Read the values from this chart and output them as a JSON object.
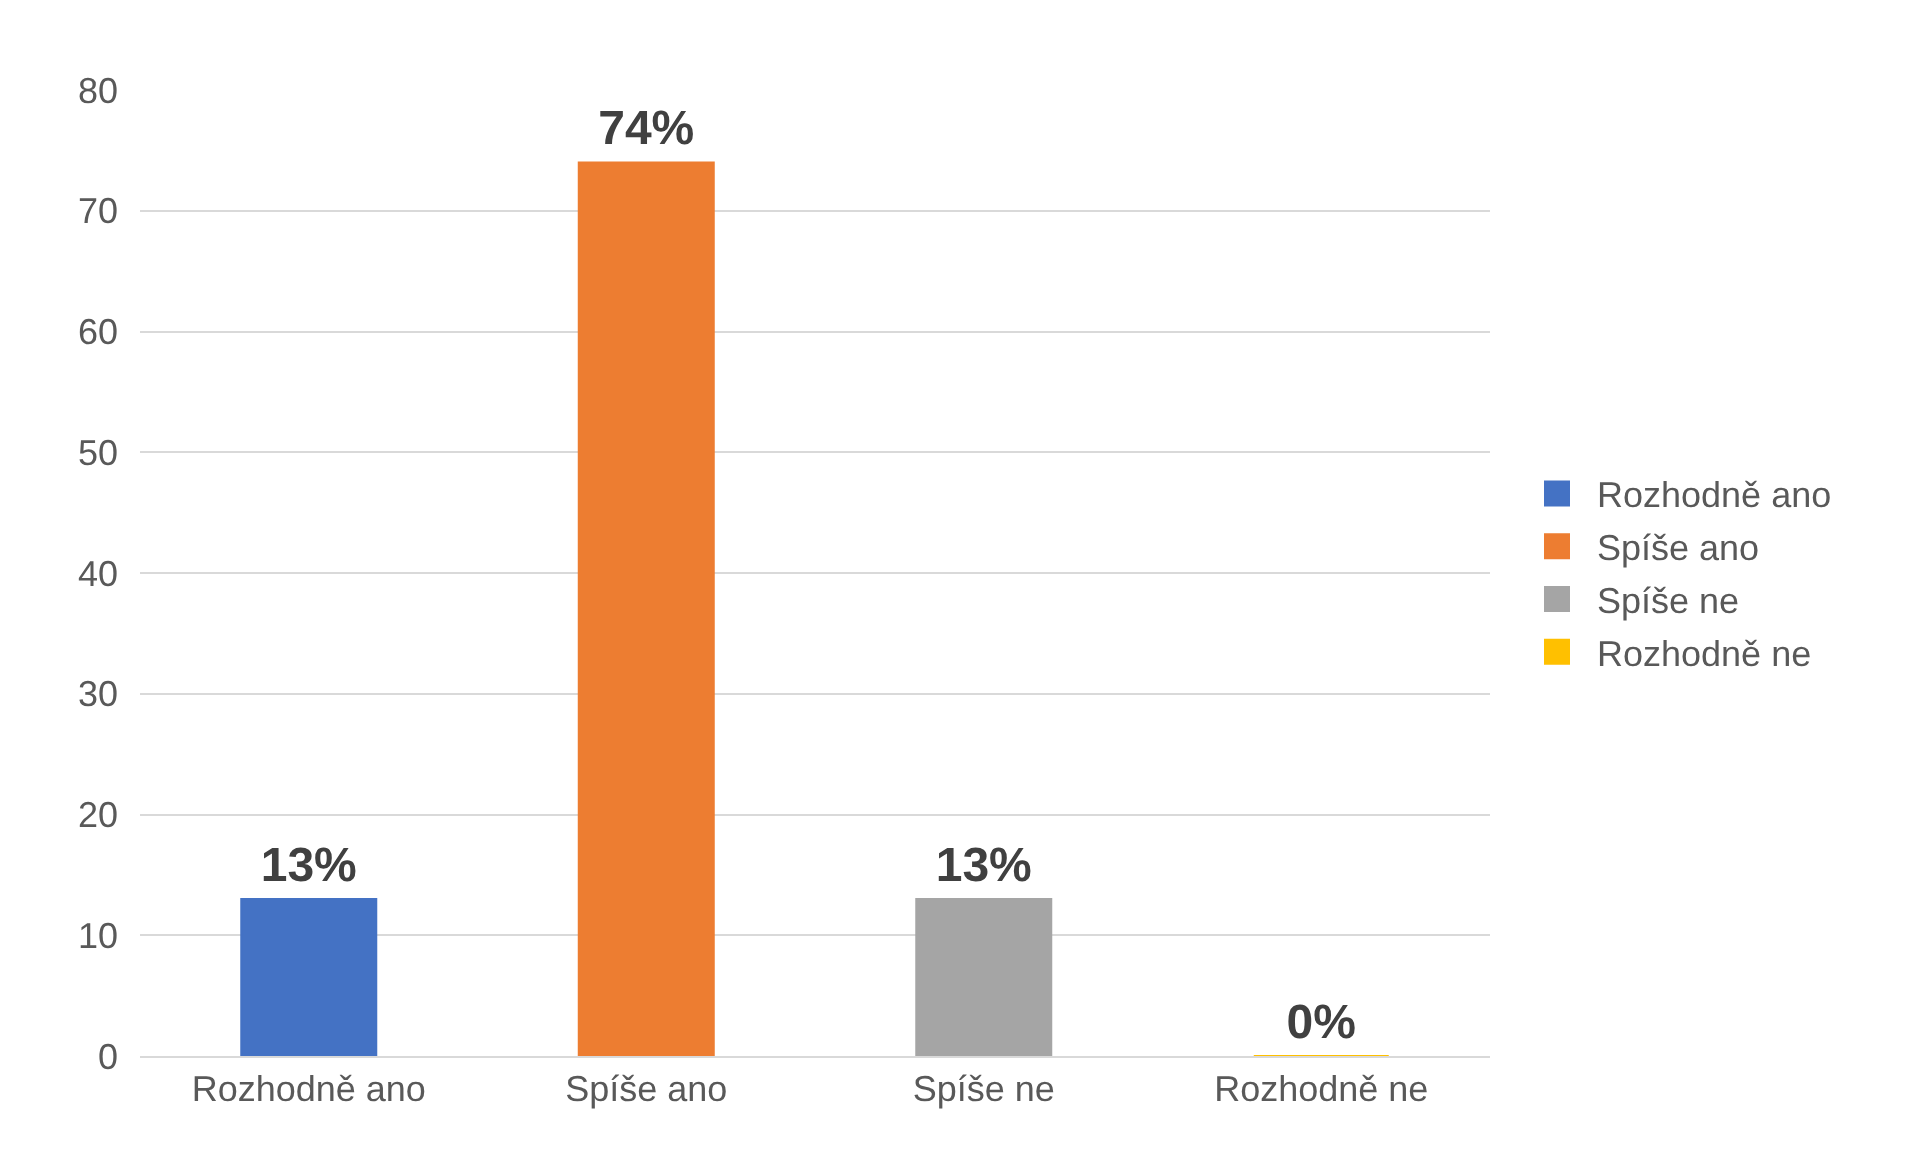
{
  "chart_data": {
    "type": "bar",
    "categories": [
      "Rozhodně ano",
      "Spíše ano",
      "Spíše ne",
      "Rozhodně ne"
    ],
    "series": [
      {
        "name": "Rozhodně ano",
        "color": "#4472c4",
        "values": [
          13,
          null,
          null,
          null
        ],
        "value_labels": [
          "13%",
          null,
          null,
          null
        ]
      },
      {
        "name": "Spíše ano",
        "color": "#ed7d31",
        "values": [
          null,
          74,
          null,
          null
        ],
        "value_labels": [
          null,
          "74%",
          null,
          null
        ]
      },
      {
        "name": "Spíše ne",
        "color": "#a5a5a5",
        "values": [
          null,
          null,
          13,
          null
        ],
        "value_labels": [
          null,
          null,
          "13%",
          null
        ]
      },
      {
        "name": "Rozhodně ne",
        "color": "#ffc000",
        "values": [
          null,
          null,
          null,
          0
        ],
        "value_labels": [
          null,
          null,
          null,
          "0%"
        ]
      }
    ],
    "ylim": [
      0,
      80
    ],
    "yticks": [
      0,
      10,
      20,
      30,
      40,
      50,
      60,
      70,
      80
    ],
    "grid": "y",
    "legend": "right"
  }
}
